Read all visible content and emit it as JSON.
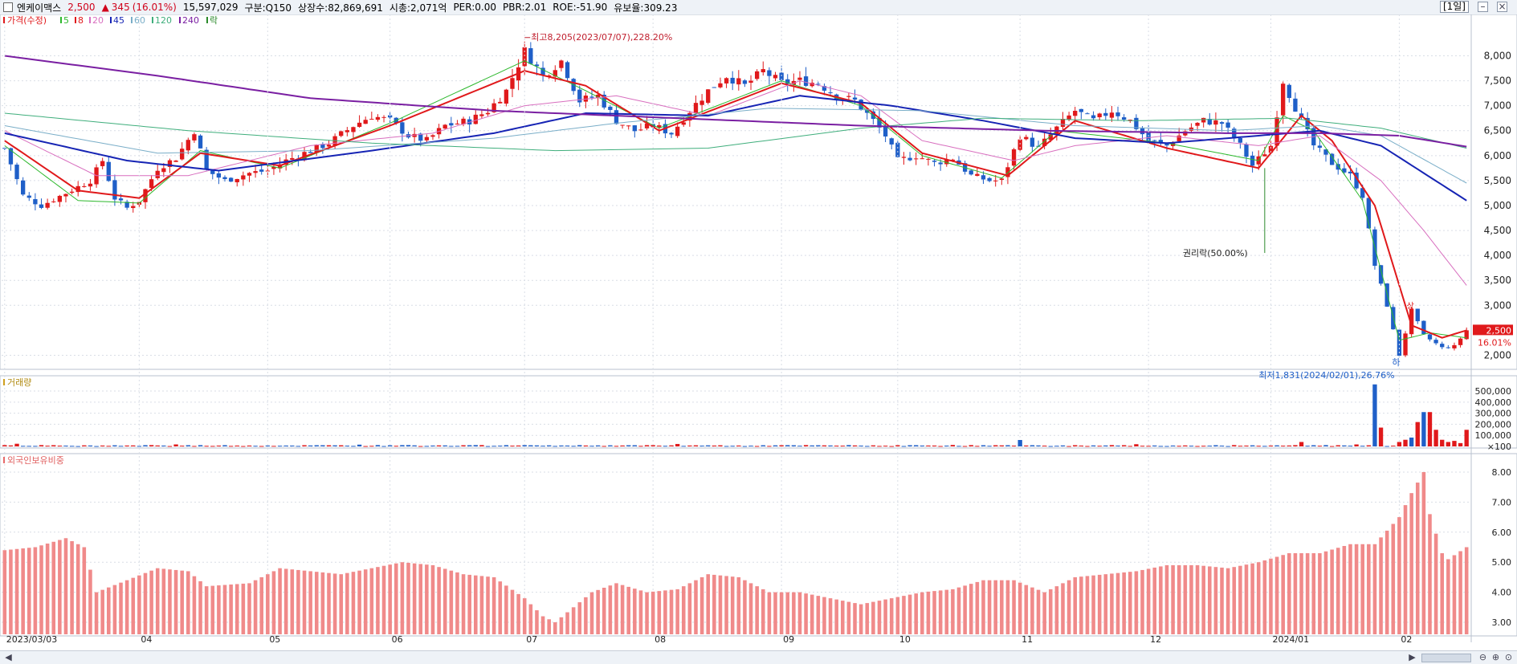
{
  "header": {
    "name": "엔케이맥스",
    "price": "2,500",
    "change_arrow": "▲",
    "change": "345",
    "change_pct": "(16.01%)",
    "volume": "15,597,029",
    "market": "구분:Q150",
    "shares": "상장수:82,869,691",
    "mktcap": "시총:2,071억",
    "per": "PER:0.00",
    "pbr": "PBR:2.01",
    "roe": "ROE:-51.90",
    "float": "유보율:309.23",
    "period": "[1일]"
  },
  "legend": {
    "price_label": "가격(수정)",
    "ma": [
      {
        "label": "5",
        "color": "#2db82d"
      },
      {
        "label": "8",
        "color": "#e0191b"
      },
      {
        "label": "20",
        "color": "#d86fbf"
      },
      {
        "label": "45",
        "color": "#1624b4"
      },
      {
        "label": "60",
        "color": "#7aaec8"
      },
      {
        "label": "120",
        "color": "#3fae7c"
      },
      {
        "label": "240",
        "color": "#7a1fa2"
      }
    ],
    "rak": "락"
  },
  "annotations": {
    "high": "최고8,205(2023/07/07),228.20%",
    "low": "최저1,831(2024/02/01),26.76%",
    "rights": "권리락(50.00%)",
    "ha": "하",
    "sang": "상"
  },
  "price_tag": {
    "price": "2,500",
    "pct": "16.01%"
  },
  "panels": {
    "volume_title": "거래량",
    "foreign_title": "외국인보유비중"
  },
  "colors": {
    "up": "#e0191b",
    "down": "#1f5fc8",
    "foreign_bar": "#f08a8a",
    "grid": "#d9dee6"
  },
  "chart_data": [
    {
      "type": "candlestick",
      "title": "가격(수정)",
      "y_ticks": [
        "8,000",
        "7,500",
        "7,000",
        "6,500",
        "6,000",
        "5,500",
        "5,000",
        "4,500",
        "4,000",
        "3,500",
        "3,000",
        "2,000"
      ],
      "y_tick_values": [
        8000,
        7500,
        7000,
        6500,
        6000,
        5500,
        5000,
        4500,
        4000,
        3500,
        3000,
        2000
      ],
      "ylim": [
        1750,
        8700
      ],
      "x_ticks": [
        "2023/03/03",
        "04",
        "05",
        "06",
        "07",
        "08",
        "09",
        "10",
        "11",
        "12",
        "2024/01",
        "02"
      ],
      "x_tick_index": [
        0,
        22,
        43,
        63,
        85,
        106,
        127,
        146,
        166,
        187,
        207,
        228
      ],
      "n_bars": 240,
      "anchors": [
        [
          0,
          6150
        ],
        [
          3,
          5200
        ],
        [
          6,
          5000
        ],
        [
          10,
          5250
        ],
        [
          14,
          5500
        ],
        [
          16,
          5900
        ],
        [
          18,
          5150
        ],
        [
          20,
          4950
        ],
        [
          22,
          5100
        ],
        [
          25,
          5750
        ],
        [
          28,
          5950
        ],
        [
          31,
          6500
        ],
        [
          33,
          5700
        ],
        [
          36,
          5500
        ],
        [
          40,
          5650
        ],
        [
          43,
          5700
        ],
        [
          46,
          5900
        ],
        [
          50,
          6100
        ],
        [
          53,
          6250
        ],
        [
          57,
          6600
        ],
        [
          60,
          6800
        ],
        [
          63,
          6700
        ],
        [
          66,
          6400
        ],
        [
          69,
          6300
        ],
        [
          72,
          6600
        ],
        [
          76,
          6700
        ],
        [
          79,
          6900
        ],
        [
          82,
          7300
        ],
        [
          85,
          8100
        ],
        [
          88,
          7600
        ],
        [
          91,
          7900
        ],
        [
          94,
          7100
        ],
        [
          97,
          7200
        ],
        [
          100,
          6700
        ],
        [
          103,
          6500
        ],
        [
          106,
          6600
        ],
        [
          109,
          6450
        ],
        [
          112,
          6900
        ],
        [
          115,
          7300
        ],
        [
          118,
          7600
        ],
        [
          121,
          7400
        ],
        [
          124,
          7700
        ],
        [
          127,
          7450
        ],
        [
          130,
          7500
        ],
        [
          133,
          7450
        ],
        [
          136,
          7200
        ],
        [
          139,
          7100
        ],
        [
          142,
          6700
        ],
        [
          144,
          6400
        ],
        [
          146,
          5900
        ],
        [
          149,
          6000
        ],
        [
          152,
          5850
        ],
        [
          155,
          5950
        ],
        [
          158,
          5600
        ],
        [
          161,
          5500
        ],
        [
          163,
          5500
        ],
        [
          166,
          6400
        ],
        [
          169,
          6150
        ],
        [
          172,
          6550
        ],
        [
          175,
          6900
        ],
        [
          178,
          6700
        ],
        [
          181,
          6900
        ],
        [
          184,
          6700
        ],
        [
          187,
          6300
        ],
        [
          190,
          6200
        ],
        [
          193,
          6500
        ],
        [
          196,
          6700
        ],
        [
          199,
          6650
        ],
        [
          202,
          6200
        ],
        [
          204,
          5800
        ],
        [
          207,
          6200
        ],
        [
          209,
          7500
        ],
        [
          212,
          6700
        ],
        [
          214,
          6200
        ],
        [
          217,
          5850
        ],
        [
          220,
          5600
        ],
        [
          222,
          5200
        ],
        [
          224,
          3800
        ],
        [
          226,
          3000
        ],
        [
          228,
          2000
        ],
        [
          230,
          2900
        ],
        [
          232,
          2400
        ],
        [
          235,
          2150
        ],
        [
          237,
          2180
        ],
        [
          239,
          2500
        ]
      ],
      "moving_averages": [
        {
          "name": "5",
          "color": "#2db82d",
          "width": 1,
          "points": [
            [
              0,
              6200
            ],
            [
              12,
              5100
            ],
            [
              22,
              5050
            ],
            [
              32,
              6100
            ],
            [
              45,
              5750
            ],
            [
              63,
              6650
            ],
            [
              85,
              7900
            ],
            [
              95,
              7300
            ],
            [
              107,
              6550
            ],
            [
              127,
              7500
            ],
            [
              140,
              7000
            ],
            [
              150,
              6000
            ],
            [
              163,
              5550
            ],
            [
              172,
              6500
            ],
            [
              190,
              6250
            ],
            [
              205,
              5900
            ],
            [
              209,
              6800
            ],
            [
              214,
              6500
            ],
            [
              222,
              5100
            ],
            [
              228,
              2300
            ],
            [
              233,
              2450
            ],
            [
              239,
              2350
            ]
          ]
        },
        {
          "name": "8",
          "color": "#e0191b",
          "width": 2,
          "points": [
            [
              0,
              6300
            ],
            [
              12,
              5300
            ],
            [
              22,
              5150
            ],
            [
              32,
              6050
            ],
            [
              45,
              5800
            ],
            [
              63,
              6600
            ],
            [
              85,
              7700
            ],
            [
              95,
              7400
            ],
            [
              107,
              6500
            ],
            [
              127,
              7450
            ],
            [
              140,
              7050
            ],
            [
              150,
              6050
            ],
            [
              164,
              5600
            ],
            [
              175,
              6700
            ],
            [
              190,
              6150
            ],
            [
              205,
              5750
            ],
            [
              212,
              6800
            ],
            [
              217,
              6300
            ],
            [
              224,
              5000
            ],
            [
              230,
              2600
            ],
            [
              235,
              2350
            ],
            [
              239,
              2500
            ]
          ]
        },
        {
          "name": "20",
          "color": "#d86fbf",
          "width": 1,
          "points": [
            [
              0,
              6500
            ],
            [
              15,
              5600
            ],
            [
              30,
              5600
            ],
            [
              50,
              6200
            ],
            [
              70,
              6450
            ],
            [
              85,
              7000
            ],
            [
              100,
              7200
            ],
            [
              115,
              6800
            ],
            [
              130,
              7500
            ],
            [
              140,
              7200
            ],
            [
              150,
              6300
            ],
            [
              165,
              5900
            ],
            [
              175,
              6200
            ],
            [
              190,
              6400
            ],
            [
              205,
              6200
            ],
            [
              215,
              6400
            ],
            [
              225,
              5500
            ],
            [
              232,
              4500
            ],
            [
              239,
              3400
            ]
          ]
        },
        {
          "name": "45",
          "color": "#1624b4",
          "width": 2,
          "points": [
            [
              0,
              6450
            ],
            [
              20,
              5900
            ],
            [
              35,
              5700
            ],
            [
              60,
              6100
            ],
            [
              80,
              6450
            ],
            [
              95,
              6850
            ],
            [
              115,
              6800
            ],
            [
              130,
              7200
            ],
            [
              145,
              7000
            ],
            [
              160,
              6700
            ],
            [
              175,
              6350
            ],
            [
              190,
              6250
            ],
            [
              205,
              6400
            ],
            [
              215,
              6500
            ],
            [
              225,
              6200
            ],
            [
              239,
              5100
            ]
          ]
        },
        {
          "name": "60",
          "color": "#7aaec8",
          "width": 1,
          "points": [
            [
              0,
              6600
            ],
            [
              25,
              6050
            ],
            [
              50,
              6100
            ],
            [
              80,
              6350
            ],
            [
              100,
              6650
            ],
            [
              125,
              6950
            ],
            [
              150,
              6900
            ],
            [
              175,
              6600
            ],
            [
              200,
              6500
            ],
            [
              215,
              6600
            ],
            [
              225,
              6400
            ],
            [
              239,
              5450
            ]
          ]
        },
        {
          "name": "120",
          "color": "#3fae7c",
          "width": 1,
          "points": [
            [
              0,
              6850
            ],
            [
              30,
              6500
            ],
            [
              60,
              6250
            ],
            [
              90,
              6100
            ],
            [
              115,
              6150
            ],
            [
              140,
              6550
            ],
            [
              160,
              6750
            ],
            [
              185,
              6700
            ],
            [
              210,
              6750
            ],
            [
              225,
              6550
            ],
            [
              239,
              6150
            ]
          ]
        },
        {
          "name": "240",
          "color": "#7a1fa2",
          "width": 2,
          "points": [
            [
              0,
              8000
            ],
            [
              25,
              7600
            ],
            [
              50,
              7150
            ],
            [
              80,
              6900
            ],
            [
              110,
              6750
            ],
            [
              140,
              6600
            ],
            [
              170,
              6500
            ],
            [
              200,
              6450
            ],
            [
              215,
              6450
            ],
            [
              228,
              6400
            ],
            [
              239,
              6180
            ]
          ]
        }
      ]
    },
    {
      "type": "bar",
      "title": "거래량",
      "y_ticks": [
        "500,000",
        "400,000",
        "300,000",
        "200,000",
        "100,000",
        "×100"
      ],
      "y_tick_values": [
        500000,
        400000,
        300000,
        200000,
        100000,
        0
      ],
      "ylim": [
        0,
        580000
      ],
      "spikes": [
        [
          2,
          24000
        ],
        [
          28,
          18000
        ],
        [
          58,
          16000
        ],
        [
          110,
          22000
        ],
        [
          155,
          13000
        ],
        [
          166,
          58000
        ],
        [
          185,
          20000
        ],
        [
          212,
          40000
        ],
        [
          221,
          18000
        ],
        [
          224,
          560000
        ],
        [
          225,
          170000
        ],
        [
          228,
          40000
        ],
        [
          229,
          60000
        ],
        [
          230,
          80000
        ],
        [
          231,
          220000
        ],
        [
          232,
          310000
        ],
        [
          233,
          310000
        ],
        [
          234,
          150000
        ],
        [
          235,
          60000
        ],
        [
          236,
          40000
        ],
        [
          237,
          50000
        ],
        [
          238,
          30000
        ],
        [
          239,
          150000
        ]
      ]
    },
    {
      "type": "bar",
      "title": "외국인보유비중",
      "y_ticks": [
        "8.00",
        "7.00",
        "6.00",
        "5.00",
        "4.00",
        "3.00"
      ],
      "y_tick_values": [
        8,
        7,
        6,
        5,
        4,
        3
      ],
      "ylim": [
        2.6,
        8.4
      ],
      "unit": "%",
      "anchors": [
        [
          0,
          5.4
        ],
        [
          5,
          5.5
        ],
        [
          10,
          5.8
        ],
        [
          13,
          5.5
        ],
        [
          15,
          4.0
        ],
        [
          20,
          4.4
        ],
        [
          25,
          4.8
        ],
        [
          30,
          4.7
        ],
        [
          33,
          4.2
        ],
        [
          40,
          4.3
        ],
        [
          45,
          4.8
        ],
        [
          55,
          4.6
        ],
        [
          60,
          4.8
        ],
        [
          65,
          5.0
        ],
        [
          70,
          4.9
        ],
        [
          75,
          4.6
        ],
        [
          80,
          4.5
        ],
        [
          85,
          3.8
        ],
        [
          88,
          3.2
        ],
        [
          90,
          3.0
        ],
        [
          93,
          3.5
        ],
        [
          96,
          4.0
        ],
        [
          100,
          4.3
        ],
        [
          105,
          4.0
        ],
        [
          110,
          4.1
        ],
        [
          115,
          4.6
        ],
        [
          120,
          4.5
        ],
        [
          125,
          4.0
        ],
        [
          130,
          4.0
        ],
        [
          140,
          3.6
        ],
        [
          145,
          3.8
        ],
        [
          150,
          4.0
        ],
        [
          155,
          4.1
        ],
        [
          160,
          4.4
        ],
        [
          165,
          4.4
        ],
        [
          170,
          4.0
        ],
        [
          175,
          4.5
        ],
        [
          180,
          4.6
        ],
        [
          185,
          4.7
        ],
        [
          190,
          4.9
        ],
        [
          195,
          4.9
        ],
        [
          200,
          4.8
        ],
        [
          205,
          5.0
        ],
        [
          210,
          5.3
        ],
        [
          215,
          5.3
        ],
        [
          220,
          5.6
        ],
        [
          224,
          5.6
        ],
        [
          228,
          6.5
        ],
        [
          230,
          7.3
        ],
        [
          232,
          8.0
        ],
        [
          233,
          6.6
        ],
        [
          235,
          5.3
        ],
        [
          236,
          5.1
        ],
        [
          239,
          5.5
        ]
      ]
    }
  ]
}
